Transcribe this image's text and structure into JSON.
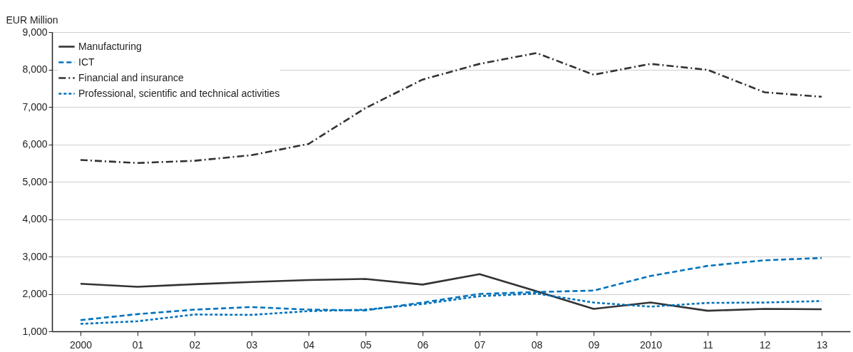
{
  "chart_data": {
    "type": "line",
    "ylabel": "EUR Million",
    "categories": [
      "2000",
      "01",
      "02",
      "03",
      "04",
      "05",
      "06",
      "07",
      "08",
      "09",
      "2010",
      "11",
      "12",
      "13"
    ],
    "series": [
      {
        "name": "Manufacturing",
        "color": "#333333",
        "line_style": "solid",
        "values": [
          2270,
          2190,
          2260,
          2320,
          2370,
          2400,
          2250,
          2530,
          2070,
          1600,
          1770,
          1550,
          1600,
          1590
        ]
      },
      {
        "name": "ICT",
        "color": "#0072bc",
        "line_style": "dashed",
        "values": [
          1300,
          1460,
          1580,
          1650,
          1580,
          1560,
          1770,
          2000,
          2050,
          2090,
          2480,
          2750,
          2900,
          2960
        ]
      },
      {
        "name": "Financial and insurance",
        "color": "#333333",
        "line_style": "dashdot",
        "values": [
          5580,
          5500,
          5560,
          5710,
          6010,
          6970,
          7730,
          8150,
          8440,
          7860,
          8150,
          7990,
          7390,
          7270
        ]
      },
      {
        "name": "Professional, scientific and technical activities",
        "color": "#0072bc",
        "line_style": "dotted",
        "values": [
          1200,
          1270,
          1450,
          1440,
          1540,
          1580,
          1730,
          1940,
          2010,
          1770,
          1660,
          1760,
          1770,
          1810
        ]
      }
    ],
    "ylim": [
      1000,
      9000
    ],
    "yticks": [
      {
        "value": 1000,
        "label": "1,000"
      },
      {
        "value": 2000,
        "label": "2,000"
      },
      {
        "value": 3000,
        "label": "3,000"
      },
      {
        "value": 4000,
        "label": "4,000"
      },
      {
        "value": 5000,
        "label": "5,000"
      },
      {
        "value": 6000,
        "label": "6,000"
      },
      {
        "value": 7000,
        "label": "7,000"
      },
      {
        "value": 8000,
        "label": "8,000"
      },
      {
        "value": 9000,
        "label": "9,000"
      }
    ],
    "grid": "y",
    "legend": "top left"
  }
}
